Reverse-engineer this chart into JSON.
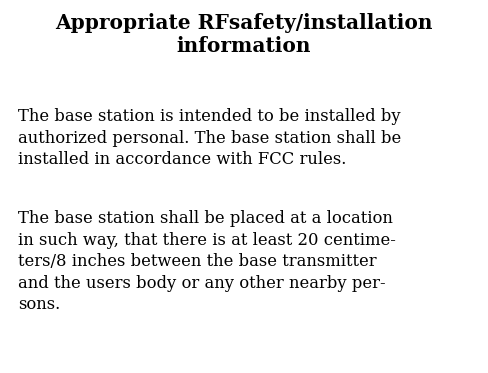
{
  "title_line1": "Appropriate RFsafety/installation",
  "title_line2": "information",
  "paragraph1": "The base station is intended to be installed by\nauthorized personal. The base station shall be\ninstalled in accordance with FCC rules.",
  "paragraph2": "The base station shall be placed at a location\nin such way, that there is at least 20 centime-\nters/8 inches between the base transmitter\nand the users body or any other nearby per-\nsons.",
  "bg_color": "#ffffff",
  "text_color": "#000000",
  "title_fontsize": 14.5,
  "body_fontsize": 11.8,
  "font_family": "DejaVu Serif",
  "fig_width": 4.88,
  "fig_height": 3.73,
  "dpi": 100
}
